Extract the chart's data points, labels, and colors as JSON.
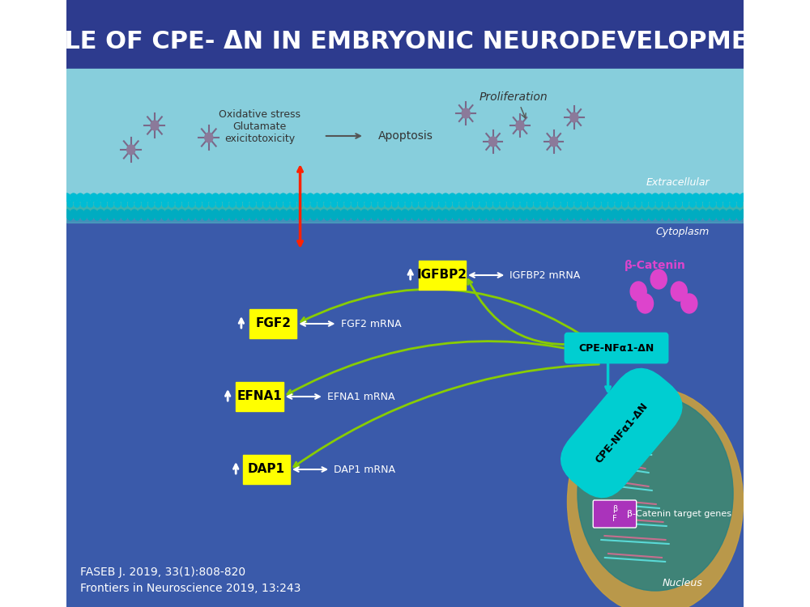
{
  "title": "ROLE OF CPE- ΔN IN EMBRYONIC NEURODEVELOPMENT",
  "title_color": "#FFFFFF",
  "header_bg": "#2a3a8c",
  "main_bg_top": "#7ab8d4",
  "main_bg_bottom": "#3a5cb0",
  "membrane_color": "#5bc8d8",
  "citation1": "FASEB J. 2019, 33(1):808-820",
  "citation2": "Frontiers in Neuroscience 2019, 13:243",
  "labels": {
    "FGF2": "FGF2",
    "EFNA1": "EFNA1",
    "DAP1": "DAP1",
    "IGFBP2": "IGFBP2",
    "FGF2_mRNA": "FGF2 mRNA",
    "EFNA1_mRNA": "EFNA1 mRNA",
    "DAP1_mRNA": "DAP1 mRNA",
    "IGFBP2_mRNA": "IGFBP2 mRNA",
    "CPE_cytoplasm": "CPE-NFα1-ΔN",
    "CPE_nucleus": "CPE-NFα1-ΔN",
    "beta_catenin": "β-Catenin",
    "beta_catenin_target": "β-Catenin target genes",
    "Nucleus": "Nucleus",
    "Cytoplasm": "Cytoplasm",
    "Extracellular": "Extracellular",
    "Apoptosis": "Apoptosis",
    "Proliferation": "Proliferation",
    "oxidative": "Oxidative stress\nGlutamate\nexicitotoxicity"
  },
  "yellow_box_color": "#FFFF00",
  "cyan_box_color": "#00CED1",
  "arrow_green": "#6BBF00",
  "arrow_white": "#FFFFFF",
  "arrow_red": "#FF0000",
  "text_white": "#FFFFFF",
  "text_black": "#000000"
}
